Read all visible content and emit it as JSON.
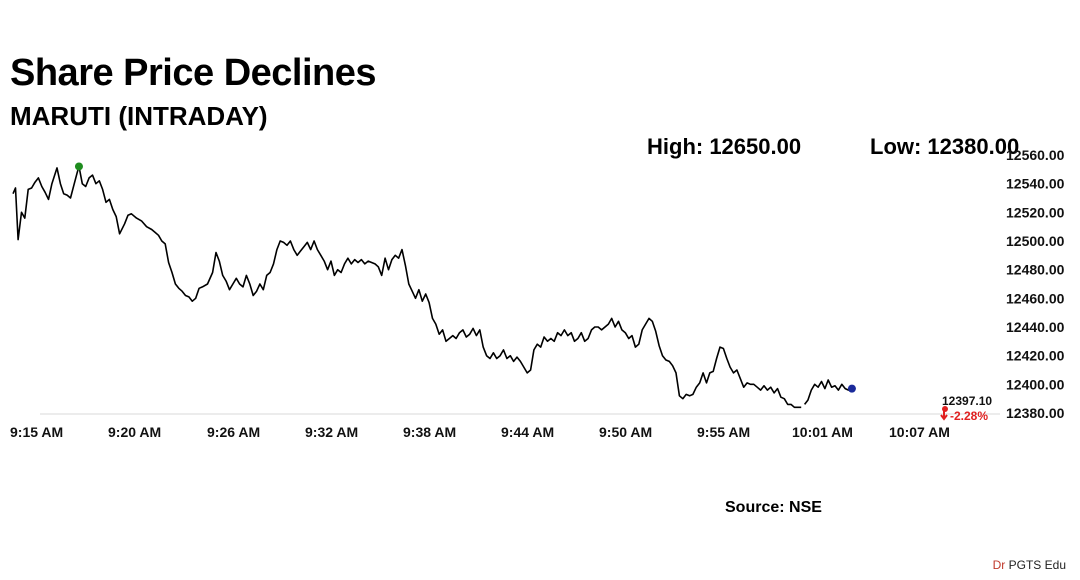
{
  "header": {
    "title": "Share Price Declines",
    "subtitle": "MARUTI (INTRADAY)",
    "high_label": "High: 12650.00",
    "low_label": "Low: 12380.00"
  },
  "footer": {
    "source": "Source: NSE",
    "watermark_prefix": "Dr",
    "watermark_rest": " PGTS Edu"
  },
  "colors": {
    "line": "#000000",
    "high_marker": "#1e8c1e",
    "last_marker": "#1a2a9a",
    "change": "#e02020"
  },
  "chart_data": {
    "type": "line",
    "title": "Share Price Declines",
    "subtitle": "MARUTI (INTRADAY)",
    "xlabel": "",
    "ylabel": "",
    "x_tick_labels": [
      "9:15 AM",
      "9:20 AM",
      "9:26 AM",
      "9:32 AM",
      "9:38 AM",
      "9:44 AM",
      "9:50 AM",
      "9:55 AM",
      "10:01 AM",
      "10:07 AM"
    ],
    "y_tick_labels": [
      "12380.00",
      "12400.00",
      "12420.00",
      "12440.00",
      "12460.00",
      "12480.00",
      "12500.00",
      "12520.00",
      "12540.00",
      "12560.00"
    ],
    "y_ticks": [
      12380,
      12400,
      12420,
      12440,
      12460,
      12480,
      12500,
      12520,
      12540,
      12560
    ],
    "ylim": [
      12380,
      12560
    ],
    "xlim": [
      0,
      58
    ],
    "grid": false,
    "last_value_label": "12397.10",
    "change_label": "-2.28%",
    "high_point": {
      "x": 3.9,
      "y": 12552
    },
    "series": [
      {
        "points": [
          [
            0.0,
            12533
          ],
          [
            0.15,
            12537
          ],
          [
            0.3,
            12501
          ],
          [
            0.5,
            12520
          ],
          [
            0.7,
            12516
          ],
          [
            0.9,
            12536
          ],
          [
            1.1,
            12537
          ],
          [
            1.3,
            12541
          ],
          [
            1.5,
            12544
          ],
          [
            1.7,
            12538
          ],
          [
            1.9,
            12534
          ],
          [
            2.1,
            12529
          ],
          [
            2.3,
            12540
          ],
          [
            2.6,
            12551
          ],
          [
            2.8,
            12540
          ],
          [
            3.0,
            12533
          ],
          [
            3.2,
            12532
          ],
          [
            3.4,
            12530
          ],
          [
            3.6,
            12539
          ],
          [
            3.8,
            12548
          ],
          [
            3.9,
            12552
          ],
          [
            4.1,
            12540
          ],
          [
            4.3,
            12538
          ],
          [
            4.5,
            12544
          ],
          [
            4.7,
            12546
          ],
          [
            4.9,
            12540
          ],
          [
            5.1,
            12542
          ],
          [
            5.3,
            12536
          ],
          [
            5.5,
            12527
          ],
          [
            5.7,
            12529
          ],
          [
            5.9,
            12522
          ],
          [
            6.1,
            12517
          ],
          [
            6.3,
            12505
          ],
          [
            6.6,
            12512
          ],
          [
            6.8,
            12518
          ],
          [
            7.0,
            12519
          ],
          [
            7.3,
            12516
          ],
          [
            7.6,
            12514
          ],
          [
            7.9,
            12510
          ],
          [
            8.2,
            12508
          ],
          [
            8.4,
            12506
          ],
          [
            8.6,
            12504
          ],
          [
            8.8,
            12500
          ],
          [
            9.0,
            12498
          ],
          [
            9.2,
            12485
          ],
          [
            9.4,
            12478
          ],
          [
            9.6,
            12470
          ],
          [
            9.8,
            12467
          ],
          [
            10.0,
            12465
          ],
          [
            10.2,
            12462
          ],
          [
            10.4,
            12461
          ],
          [
            10.6,
            12458
          ],
          [
            10.8,
            12460
          ],
          [
            11.0,
            12467
          ],
          [
            11.2,
            12468
          ],
          [
            11.5,
            12470
          ],
          [
            11.8,
            12478
          ],
          [
            12.0,
            12492
          ],
          [
            12.2,
            12486
          ],
          [
            12.4,
            12476
          ],
          [
            12.6,
            12472
          ],
          [
            12.8,
            12466
          ],
          [
            13.0,
            12470
          ],
          [
            13.2,
            12474
          ],
          [
            13.4,
            12470
          ],
          [
            13.6,
            12468
          ],
          [
            13.8,
            12476
          ],
          [
            14.0,
            12470
          ],
          [
            14.2,
            12462
          ],
          [
            14.4,
            12465
          ],
          [
            14.6,
            12470
          ],
          [
            14.8,
            12466
          ],
          [
            15.0,
            12476
          ],
          [
            15.2,
            12478
          ],
          [
            15.4,
            12484
          ],
          [
            15.6,
            12494
          ],
          [
            15.8,
            12500
          ],
          [
            16.0,
            12499
          ],
          [
            16.2,
            12497
          ],
          [
            16.4,
            12500
          ],
          [
            16.6,
            12494
          ],
          [
            16.8,
            12490
          ],
          [
            17.0,
            12493
          ],
          [
            17.2,
            12496
          ],
          [
            17.4,
            12499
          ],
          [
            17.6,
            12494
          ],
          [
            17.8,
            12500
          ],
          [
            18.0,
            12494
          ],
          [
            18.2,
            12490
          ],
          [
            18.4,
            12486
          ],
          [
            18.6,
            12480
          ],
          [
            18.8,
            12486
          ],
          [
            19.0,
            12476
          ],
          [
            19.2,
            12480
          ],
          [
            19.4,
            12478
          ],
          [
            19.6,
            12484
          ],
          [
            19.8,
            12488
          ],
          [
            20.0,
            12484
          ],
          [
            20.2,
            12487
          ],
          [
            20.4,
            12485
          ],
          [
            20.6,
            12487
          ],
          [
            20.8,
            12484
          ],
          [
            21.0,
            12486
          ],
          [
            21.2,
            12485
          ],
          [
            21.4,
            12484
          ],
          [
            21.6,
            12482
          ],
          [
            21.8,
            12476
          ],
          [
            22.0,
            12488
          ],
          [
            22.2,
            12480
          ],
          [
            22.4,
            12487
          ],
          [
            22.6,
            12490
          ],
          [
            22.8,
            12488
          ],
          [
            23.0,
            12494
          ],
          [
            23.2,
            12483
          ],
          [
            23.4,
            12470
          ],
          [
            23.6,
            12465
          ],
          [
            23.8,
            12460
          ],
          [
            24.0,
            12466
          ],
          [
            24.2,
            12458
          ],
          [
            24.4,
            12463
          ],
          [
            24.6,
            12457
          ],
          [
            24.8,
            12446
          ],
          [
            25.0,
            12442
          ],
          [
            25.2,
            12435
          ],
          [
            25.4,
            12438
          ],
          [
            25.6,
            12430
          ],
          [
            25.8,
            12432
          ],
          [
            26.0,
            12434
          ],
          [
            26.2,
            12432
          ],
          [
            26.4,
            12436
          ],
          [
            26.6,
            12438
          ],
          [
            26.8,
            12433
          ],
          [
            27.0,
            12435
          ],
          [
            27.2,
            12439
          ],
          [
            27.4,
            12434
          ],
          [
            27.6,
            12438
          ],
          [
            27.8,
            12426
          ],
          [
            28.0,
            12420
          ],
          [
            28.2,
            12418
          ],
          [
            28.4,
            12422
          ],
          [
            28.6,
            12418
          ],
          [
            28.8,
            12420
          ],
          [
            29.0,
            12424
          ],
          [
            29.2,
            12418
          ],
          [
            29.4,
            12420
          ],
          [
            29.6,
            12416
          ],
          [
            29.8,
            12419
          ],
          [
            30.0,
            12416
          ],
          [
            30.2,
            12412
          ],
          [
            30.4,
            12408
          ],
          [
            30.6,
            12410
          ],
          [
            30.8,
            12424
          ],
          [
            31.0,
            12428
          ],
          [
            31.2,
            12426
          ],
          [
            31.4,
            12433
          ],
          [
            31.6,
            12430
          ],
          [
            31.8,
            12432
          ],
          [
            32.0,
            12430
          ],
          [
            32.2,
            12436
          ],
          [
            32.4,
            12434
          ],
          [
            32.6,
            12438
          ],
          [
            32.8,
            12434
          ],
          [
            33.0,
            12436
          ],
          [
            33.2,
            12430
          ],
          [
            33.4,
            12432
          ],
          [
            33.6,
            12436
          ],
          [
            33.8,
            12430
          ],
          [
            34.0,
            12432
          ],
          [
            34.2,
            12438
          ],
          [
            34.4,
            12440
          ],
          [
            34.6,
            12440
          ],
          [
            34.8,
            12438
          ],
          [
            35.0,
            12440
          ],
          [
            35.2,
            12442
          ],
          [
            35.4,
            12446
          ],
          [
            35.6,
            12440
          ],
          [
            35.8,
            12444
          ],
          [
            36.0,
            12438
          ],
          [
            36.2,
            12436
          ],
          [
            36.4,
            12432
          ],
          [
            36.6,
            12434
          ],
          [
            36.8,
            12426
          ],
          [
            37.0,
            12428
          ],
          [
            37.2,
            12438
          ],
          [
            37.4,
            12442
          ],
          [
            37.6,
            12446
          ],
          [
            37.8,
            12444
          ],
          [
            38.0,
            12437
          ],
          [
            38.2,
            12427
          ],
          [
            38.4,
            12420
          ],
          [
            38.6,
            12417
          ],
          [
            38.8,
            12416
          ],
          [
            39.0,
            12413
          ],
          [
            39.2,
            12408
          ],
          [
            39.4,
            12392
          ],
          [
            39.6,
            12390
          ],
          [
            39.8,
            12393
          ],
          [
            40.0,
            12392
          ],
          [
            40.2,
            12393
          ],
          [
            40.4,
            12398
          ],
          [
            40.6,
            12401
          ],
          [
            40.8,
            12408
          ],
          [
            41.0,
            12401
          ],
          [
            41.2,
            12408
          ],
          [
            41.4,
            12409
          ],
          [
            41.6,
            12418
          ],
          [
            41.8,
            12426
          ],
          [
            42.0,
            12425
          ],
          [
            42.2,
            12418
          ],
          [
            42.4,
            12412
          ],
          [
            42.6,
            12408
          ],
          [
            42.8,
            12410
          ],
          [
            43.0,
            12404
          ],
          [
            43.2,
            12398
          ],
          [
            43.4,
            12401
          ],
          [
            43.6,
            12400
          ],
          [
            43.8,
            12400
          ],
          [
            44.0,
            12398
          ],
          [
            44.2,
            12396
          ],
          [
            44.4,
            12399
          ],
          [
            44.6,
            12396
          ],
          [
            44.8,
            12398
          ],
          [
            45.0,
            12394
          ],
          [
            45.2,
            12397
          ],
          [
            45.4,
            12391
          ],
          [
            45.6,
            12390
          ],
          [
            45.8,
            12386
          ],
          [
            46.0,
            12386
          ],
          [
            46.2,
            12384
          ],
          [
            46.4,
            12384
          ],
          [
            46.6,
            12384
          ]
        ]
      },
      {
        "points": [
          [
            46.8,
            12386
          ],
          [
            47.0,
            12389
          ],
          [
            47.2,
            12396
          ],
          [
            47.4,
            12400
          ],
          [
            47.6,
            12398
          ],
          [
            47.8,
            12402
          ],
          [
            48.0,
            12397
          ],
          [
            48.2,
            12403
          ],
          [
            48.4,
            12398
          ],
          [
            48.6,
            12399
          ],
          [
            48.8,
            12396
          ],
          [
            49.0,
            12400
          ],
          [
            49.2,
            12397
          ],
          [
            49.4,
            12396
          ],
          [
            49.6,
            12397
          ]
        ]
      }
    ]
  }
}
